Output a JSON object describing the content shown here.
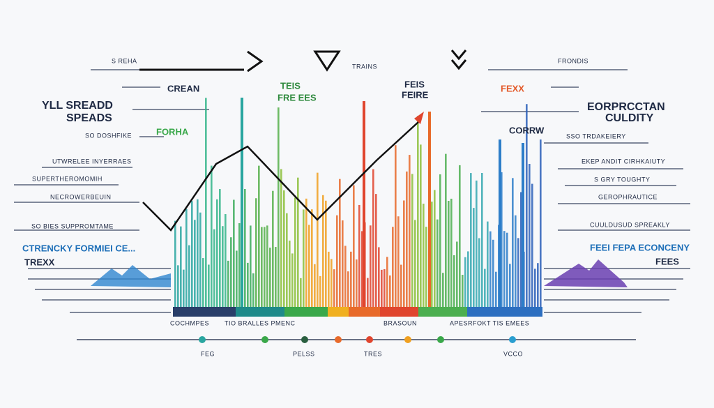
{
  "labels": {
    "top_left": "S REHA",
    "crean": "CREAN",
    "left_title_1": "YLL SREADD",
    "left_title_2": "SPEADS",
    "left_1": "SO DOSHFIKE",
    "forha": "FORHA",
    "left_2": "UTWRELEE INYERRAES",
    "left_3": "SUPERTHEROMOMIH",
    "left_4": "NECROWERBEUIN",
    "left_5": "SO BIES SUPPROMTAME",
    "left_6": "CTRENCKY FORMIEI CE...",
    "left_7": "TREXX",
    "center_1": "TEIS",
    "center_2": "FRE EES",
    "center_3": "TRAINS",
    "center_4": "FEIS",
    "center_5": "FEIRE",
    "fexx": "FEXX",
    "top_right": "FRONDIS",
    "right_title_1": "EORPRCCTAN",
    "right_title_2": "CULDITY",
    "corrw": "CORRW",
    "right_1": "SSO TRDAKEIERY",
    "right_2": "EKEP ANDIT CIRHKAIUTY",
    "right_3": "S GRY TOUGHTY",
    "right_4": "GEROPHRAUTICE",
    "right_5": "CUULDUSUD SPREAKLY",
    "right_6": "FEEI FEPA ECONCENY",
    "right_7": "FEES",
    "bottom_1": "COCHMPES",
    "bottom_2": "TIO BRALLES PMENC",
    "bottom_3": "BRASOUN",
    "bottom_4": "APESRFOKT TIS EMEES",
    "foot_1": "FEG",
    "foot_2": "PELSS",
    "foot_3": "TRES",
    "foot_4": "VCCO"
  }
}
